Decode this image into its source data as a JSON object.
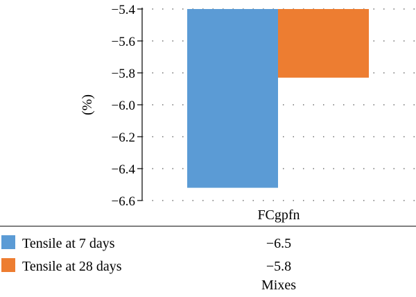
{
  "chart_data": {
    "type": "bar",
    "categories": [
      "FCgpfn"
    ],
    "series": [
      {
        "name": "Tensile at 7 days",
        "values": [
          -6.52
        ],
        "table_value": "−6.5",
        "color": "#5b9bd5"
      },
      {
        "name": "Tensile at 28 days",
        "values": [
          -5.83
        ],
        "table_value": "−5.8",
        "color": "#ed7d31"
      }
    ],
    "ylabel": "(%)",
    "xlabel": "Mixes",
    "ylim": [
      -6.6,
      -5.4
    ],
    "yticks": [
      -5.4,
      -5.6,
      -5.8,
      -6.0,
      -6.2,
      -6.4,
      -6.6
    ],
    "ytick_labels": [
      "−5.4",
      "−5.6",
      "−5.8",
      "−6.0",
      "−6.2",
      "−6.4",
      "−6.6"
    ],
    "grid": true,
    "bar_baseline": "top",
    "legend_placement": "data-table-below"
  }
}
